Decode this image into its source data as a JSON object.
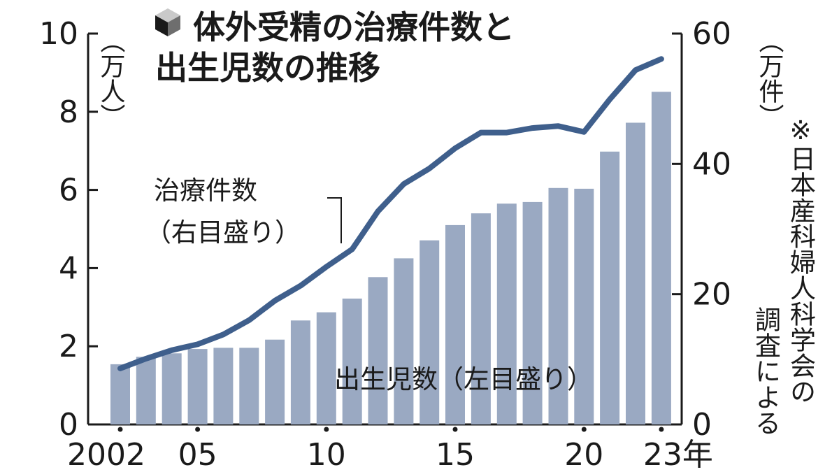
{
  "chart_data": {
    "type": "bar+line",
    "title_lines": [
      "体外受精の治療件数と",
      "出生児数の推移"
    ],
    "x_labels": [
      "2002",
      "05",
      "10",
      "15",
      "20",
      "23年"
    ],
    "x": [
      2002,
      2003,
      2004,
      2005,
      2006,
      2007,
      2008,
      2009,
      2010,
      2011,
      2012,
      2013,
      2014,
      2015,
      2016,
      2017,
      2018,
      2019,
      2020,
      2021,
      2022,
      2023
    ],
    "left_axis": {
      "unit": "（万人）",
      "ylim": [
        0,
        10
      ],
      "ticks": [
        "0",
        "2",
        "4",
        "6",
        "8",
        "10"
      ]
    },
    "right_axis": {
      "unit": "（万件）",
      "ylim": [
        0,
        60
      ],
      "ticks": [
        "0",
        "20",
        "40",
        "60"
      ]
    },
    "series": [
      {
        "name": "出生児数（左目盛り）",
        "type": "bar",
        "axis": "left",
        "color": "#9aa9c2",
        "values": [
          1.54,
          1.73,
          1.82,
          1.93,
          1.96,
          1.96,
          2.17,
          2.66,
          2.87,
          3.22,
          3.77,
          4.25,
          4.71,
          5.1,
          5.4,
          5.65,
          5.69,
          6.05,
          6.03,
          6.98,
          7.72,
          8.51
        ]
      },
      {
        "name_lines": [
          "治療件数",
          "（右目盛り）"
        ],
        "type": "line",
        "axis": "right",
        "color": "#3f5f8c",
        "values": [
          8.6,
          10.1,
          11.4,
          12.3,
          13.8,
          16.0,
          19.0,
          21.3,
          24.2,
          26.9,
          32.7,
          36.9,
          39.3,
          42.4,
          44.8,
          44.8,
          45.5,
          45.8,
          44.9,
          49.9,
          54.4,
          56.1
        ]
      }
    ],
    "note": "※日本産科婦人科学会の調査による",
    "note_column_1": "※日本産科婦人科学会の",
    "note_column_2": "調査による"
  }
}
